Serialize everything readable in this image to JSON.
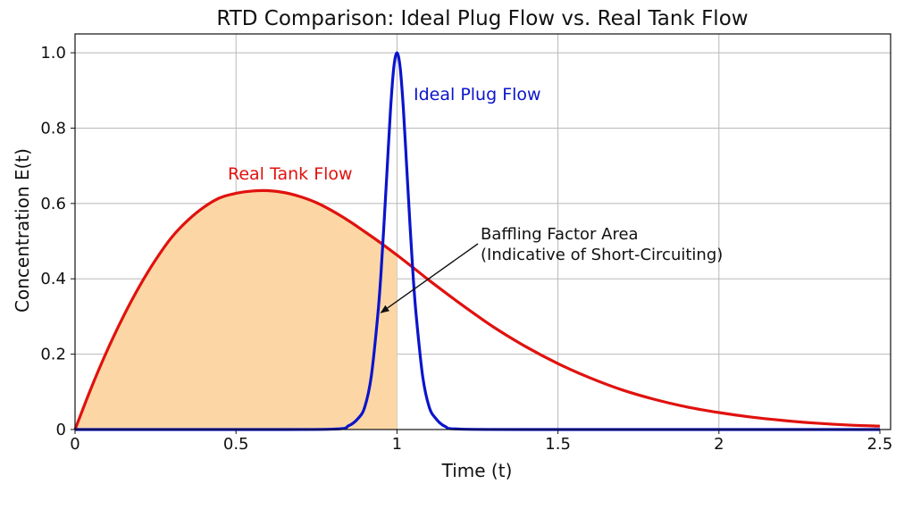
{
  "chart_data": {
    "type": "line",
    "title": "RTD Comparison: Ideal Plug Flow vs. Real Tank Flow",
    "xlabel": "Time (t)",
    "ylabel": "Concentration E(t)",
    "xlim": [
      0,
      2.5
    ],
    "ylim": [
      0,
      1.05
    ],
    "grid": true,
    "x_ticks": [
      {
        "value": 0,
        "label": "0"
      },
      {
        "value": 0.5,
        "label": "0.5"
      },
      {
        "value": 1,
        "label": "1"
      },
      {
        "value": 1.5,
        "label": "1.5"
      },
      {
        "value": 2,
        "label": "2"
      },
      {
        "value": 2.5,
        "label": "2.5"
      }
    ],
    "y_ticks": [
      {
        "value": 0,
        "label": "0"
      },
      {
        "value": 0.2,
        "label": "0.2"
      },
      {
        "value": 0.4,
        "label": "0.4"
      },
      {
        "value": 0.6,
        "label": "0.6"
      },
      {
        "value": 0.8,
        "label": "0.8"
      },
      {
        "value": 1.0,
        "label": "1.0"
      }
    ],
    "series": [
      {
        "name": "Real Tank Flow",
        "color": "#e0120e",
        "x": [
          0,
          0.05,
          0.1,
          0.15,
          0.2,
          0.25,
          0.3,
          0.35,
          0.4,
          0.45,
          0.5,
          0.55,
          0.6,
          0.65,
          0.7,
          0.75,
          0.8,
          0.85,
          0.9,
          0.95,
          1.0,
          1.05,
          1.1,
          1.2,
          1.3,
          1.4,
          1.5,
          1.6,
          1.7,
          1.8,
          1.9,
          2.0,
          2.1,
          2.2,
          2.3,
          2.4,
          2.5
        ],
        "y": [
          0,
          0.11,
          0.21,
          0.3,
          0.38,
          0.45,
          0.51,
          0.555,
          0.59,
          0.615,
          0.627,
          0.633,
          0.634,
          0.629,
          0.618,
          0.602,
          0.58,
          0.554,
          0.525,
          0.495,
          0.463,
          0.43,
          0.396,
          0.332,
          0.272,
          0.22,
          0.175,
          0.137,
          0.105,
          0.08,
          0.06,
          0.045,
          0.033,
          0.024,
          0.017,
          0.012,
          0.009
        ]
      },
      {
        "name": "Ideal Plug Flow",
        "color": "#0b14cc",
        "x": [
          0,
          0.5,
          0.8,
          0.85,
          0.88,
          0.9,
          0.92,
          0.94,
          0.95,
          0.96,
          0.97,
          0.98,
          0.99,
          1.0,
          1.01,
          1.02,
          1.03,
          1.04,
          1.05,
          1.06,
          1.08,
          1.1,
          1.12,
          1.15,
          1.2,
          1.5,
          2.0,
          2.5
        ],
        "y": [
          0,
          0,
          0.001,
          0.01,
          0.03,
          0.06,
          0.14,
          0.3,
          0.41,
          0.55,
          0.7,
          0.85,
          0.96,
          1.0,
          0.96,
          0.85,
          0.7,
          0.55,
          0.41,
          0.3,
          0.14,
          0.06,
          0.03,
          0.008,
          0.001,
          0,
          0,
          0
        ]
      }
    ],
    "shaded_region": {
      "label": "Baffling Factor Area",
      "follows_series": "Real Tank Flow",
      "x_range": [
        0,
        1.0
      ],
      "color": "#fcd7a5"
    },
    "annotations": {
      "real_label": "Real Tank Flow",
      "ideal_label": "Ideal Plug Flow",
      "area_line1": "Baffling Factor Area",
      "area_line2": "(Indicative of Short-Circuiting)",
      "arrow_to": {
        "x": 0.95,
        "y": 0.31
      }
    }
  }
}
